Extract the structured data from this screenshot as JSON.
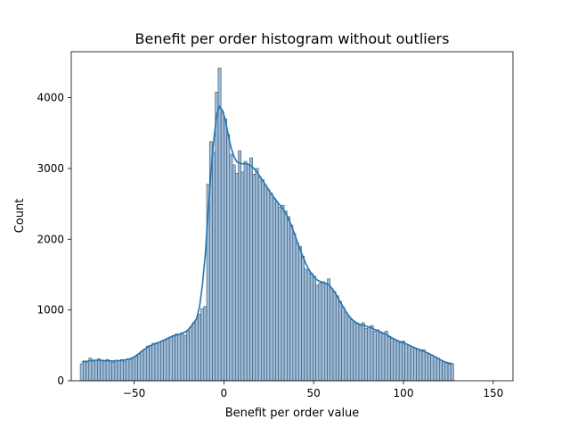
{
  "chart_data": {
    "type": "bar",
    "title": "Benefit per order histogram without outliers",
    "xlabel": "Benefit per order value",
    "ylabel": "Count",
    "xlim": [
      -85,
      161
    ],
    "ylim": [
      0,
      4650
    ],
    "xticks": [
      -50,
      0,
      50,
      100,
      150
    ],
    "yticks": [
      0,
      1000,
      2000,
      3000,
      4000
    ],
    "grid": false,
    "legend": "none",
    "colors": {
      "bar_fill": "#9ebcd9",
      "bar_edge": "#39536b",
      "kde_line": "#1f77b4"
    },
    "bin_width": 1.6,
    "bin_start": -80.0,
    "counts": [
      240,
      280,
      260,
      320,
      270,
      290,
      310,
      280,
      270,
      300,
      280,
      260,
      290,
      280,
      300,
      270,
      310,
      300,
      320,
      350,
      380,
      420,
      450,
      490,
      500,
      530,
      520,
      540,
      560,
      580,
      600,
      620,
      640,
      660,
      650,
      680,
      640,
      700,
      760,
      820,
      860,
      940,
      1020,
      1050,
      2780,
      3380,
      3230,
      4080,
      4420,
      3800,
      3700,
      3480,
      3200,
      3050,
      2930,
      3250,
      2950,
      3100,
      3060,
      3150,
      2920,
      3000,
      2880,
      2840,
      2760,
      2700,
      2650,
      2580,
      2520,
      2450,
      2480,
      2400,
      2320,
      2200,
      2080,
      1950,
      1900,
      1760,
      1580,
      1560,
      1520,
      1480,
      1350,
      1380,
      1400,
      1380,
      1440,
      1300,
      1260,
      1200,
      1120,
      1040,
      960,
      900,
      860,
      820,
      800,
      780,
      820,
      740,
      760,
      780,
      700,
      720,
      680,
      660,
      700,
      620,
      600,
      580,
      560,
      540,
      560,
      520,
      500,
      480,
      460,
      450,
      420,
      440,
      400,
      380,
      360,
      340,
      320,
      290,
      270,
      250,
      230,
      240
    ]
  }
}
